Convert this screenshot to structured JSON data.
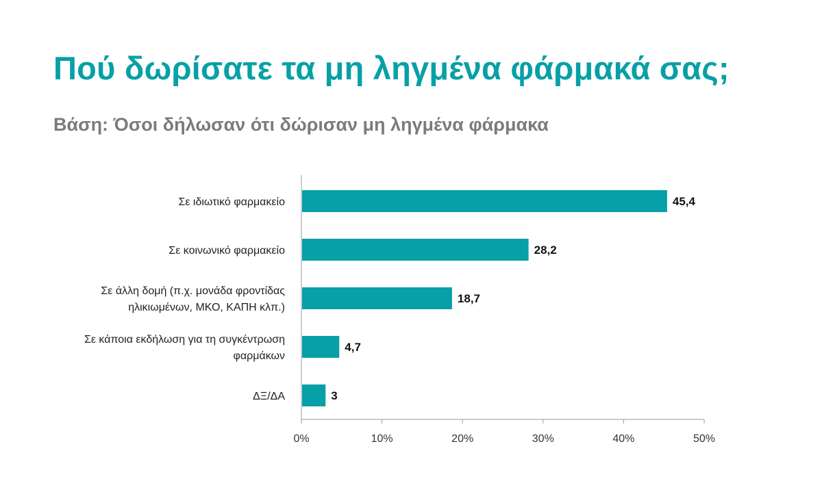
{
  "header": {
    "title": "Πού δωρίσατε τα μη ληγμένα φάρμακά σας;",
    "subtitle": "Βάση: Όσοι δήλωσαν ότι δώρισαν μη ληγμένα φάρμακα"
  },
  "colors": {
    "bar": "#07a0a6",
    "title": "#07a0a6",
    "subtitle": "#7b7b7b",
    "axis": "#9a9a9a"
  },
  "chart_data": {
    "type": "bar",
    "orientation": "horizontal",
    "categories": [
      [
        "Σε ιδιωτικό φαρμακείο"
      ],
      [
        "Σε κοινωνικό φαρμακείο"
      ],
      [
        "Σε άλλη δομή (π.χ. μονάδα φροντίδας",
        "ηλικιωμένων, ΜΚΟ, ΚΑΠΗ κλπ.)"
      ],
      [
        "Σε κάποια εκδήλωση για τη συγκέντρωση",
        "φαρμάκων"
      ],
      [
        "ΔΞ/ΔΑ"
      ]
    ],
    "values": [
      45.4,
      28.2,
      18.7,
      4.7,
      3
    ],
    "value_labels": [
      "45,4",
      "28,2",
      "18,7",
      "4,7",
      "3"
    ],
    "xlim": [
      0,
      50
    ],
    "xticks": [
      0,
      10,
      20,
      30,
      40,
      50
    ],
    "xtick_labels": [
      "0%",
      "10%",
      "20%",
      "30%",
      "40%",
      "50%"
    ],
    "grid": false,
    "legend": "none"
  }
}
